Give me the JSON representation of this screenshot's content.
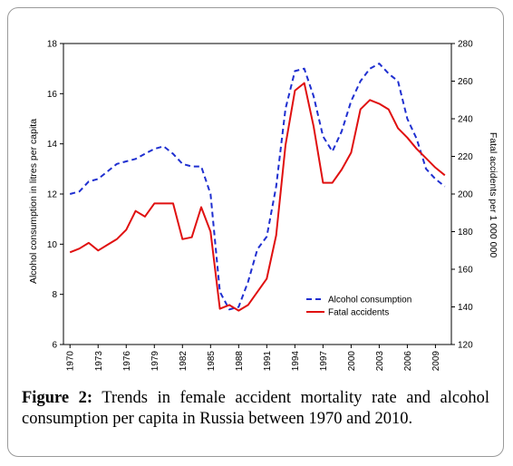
{
  "chart_data": {
    "type": "line",
    "x": [
      1970,
      1971,
      1972,
      1973,
      1974,
      1975,
      1976,
      1977,
      1978,
      1979,
      1980,
      1981,
      1982,
      1983,
      1984,
      1985,
      1986,
      1987,
      1988,
      1989,
      1990,
      1991,
      1992,
      1993,
      1994,
      1995,
      1996,
      1997,
      1998,
      1999,
      2000,
      2001,
      2002,
      2003,
      2004,
      2005,
      2006,
      2007,
      2008,
      2009,
      2010
    ],
    "x_tick_labels": [
      "1970",
      "1973",
      "1976",
      "1979",
      "1982",
      "1985",
      "1988",
      "1991",
      "1994",
      "1997",
      "2000",
      "2003",
      "2006",
      "2009"
    ],
    "ylabel_left": "Alcohol consumption in litres per capita",
    "ylabel_right": "Fatal accidents per 1 000 000",
    "ylim_left": [
      6,
      18
    ],
    "ylim_right": [
      120,
      280
    ],
    "y_ticks_left": [
      "6",
      "8",
      "10",
      "12",
      "14",
      "16",
      "18"
    ],
    "y_ticks_right": [
      "120",
      "140",
      "160",
      "180",
      "200",
      "220",
      "240",
      "260",
      "280"
    ],
    "grid": false,
    "legend_position": "bottom-right",
    "series": [
      {
        "name": "Alcohol consumption",
        "axis": "left",
        "style": "dashed",
        "color": "#1f2fd0",
        "values": [
          12.0,
          12.1,
          12.5,
          12.6,
          12.9,
          13.2,
          13.3,
          13.4,
          13.6,
          13.8,
          13.9,
          13.6,
          13.2,
          13.1,
          13.1,
          12.0,
          8.1,
          7.4,
          7.5,
          8.5,
          9.8,
          10.3,
          12.3,
          15.4,
          16.9,
          17.0,
          15.9,
          14.3,
          13.7,
          14.5,
          15.7,
          16.5,
          17.0,
          17.2,
          16.8,
          16.5,
          15.0,
          14.2,
          13.0,
          12.6,
          12.3
        ]
      },
      {
        "name": "Fatal accidents",
        "axis": "right",
        "style": "solid",
        "color": "#e01010",
        "values": [
          169,
          171,
          174,
          170,
          173,
          176,
          181,
          191,
          188,
          195,
          195,
          195,
          176,
          177,
          193,
          180,
          139,
          141,
          138,
          141,
          148,
          155,
          178,
          226,
          255,
          259,
          236,
          206,
          206,
          213,
          222,
          245,
          250,
          248,
          245,
          235,
          230,
          224,
          219,
          214,
          210
        ]
      }
    ]
  },
  "caption": {
    "label": "Figure 2:",
    "text": " Trends in female accident mortality rate and alcohol consumption per capita in Russia between 1970 and 2010."
  }
}
